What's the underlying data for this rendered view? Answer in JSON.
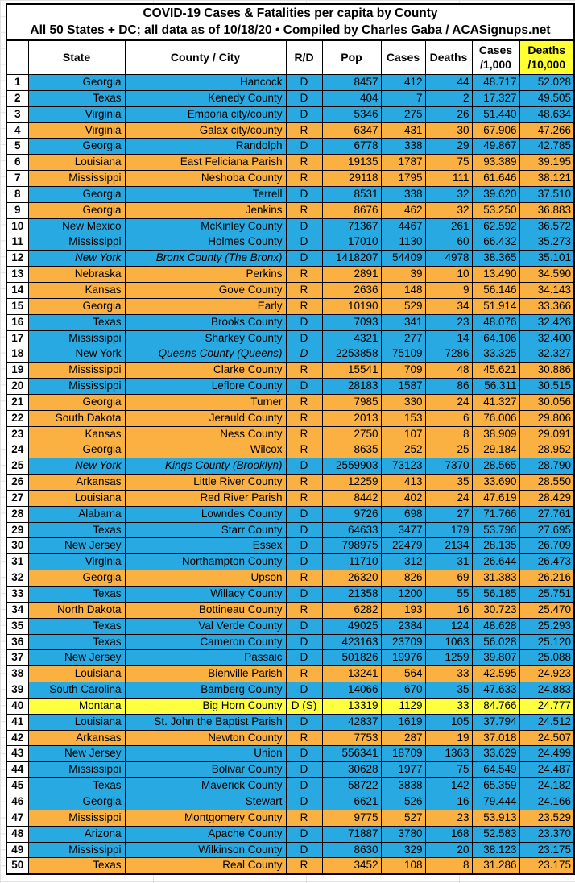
{
  "title": {
    "line1": "COVID-19 Cases & Fatalities per capita by County",
    "line2": "All 50 States + DC; all data as of 10/18/20  • Compiled by Charles Gaba / ACASignups.net"
  },
  "colors": {
    "democrat_row": "#29A9E1",
    "republican_row": "#FBB042",
    "special_row": "#FFFF42",
    "header_highlight": "#FFFF33",
    "border": "#000000"
  },
  "table": {
    "headers": {
      "index": "",
      "state": "State",
      "county": "County / City",
      "rd": "R/D",
      "pop": "Pop",
      "cases": "Cases",
      "deaths": "Deaths",
      "cases_per_1000": "Cases\n/1,000",
      "deaths_per_10000": "Deaths\n/10,000"
    },
    "rows": [
      {
        "n": "1",
        "state": "Georgia",
        "county": "Hancock",
        "rd": "D",
        "pop": "8457",
        "cases": "412",
        "deaths": "44",
        "c1k": "48.717",
        "d10k": "52.028",
        "party": "D"
      },
      {
        "n": "2",
        "state": "Texas",
        "county": "Kenedy County",
        "rd": "D",
        "pop": "404",
        "cases": "7",
        "deaths": "2",
        "c1k": "17.327",
        "d10k": "49.505",
        "party": "D"
      },
      {
        "n": "3",
        "state": "Virginia",
        "county": "Emporia city/county",
        "rd": "D",
        "pop": "5346",
        "cases": "275",
        "deaths": "26",
        "c1k": "51.440",
        "d10k": "48.634",
        "party": "D"
      },
      {
        "n": "4",
        "state": "Virginia",
        "county": "Galax city/county",
        "rd": "R",
        "pop": "6347",
        "cases": "431",
        "deaths": "30",
        "c1k": "67.906",
        "d10k": "47.266",
        "party": "R"
      },
      {
        "n": "5",
        "state": "Georgia",
        "county": "Randolph",
        "rd": "D",
        "pop": "6778",
        "cases": "338",
        "deaths": "29",
        "c1k": "49.867",
        "d10k": "42.785",
        "party": "D"
      },
      {
        "n": "6",
        "state": "Louisiana",
        "county": "East Feliciana Parish",
        "rd": "R",
        "pop": "19135",
        "cases": "1787",
        "deaths": "75",
        "c1k": "93.389",
        "d10k": "39.195",
        "party": "R"
      },
      {
        "n": "7",
        "state": "Mississippi",
        "county": "Neshoba County",
        "rd": "R",
        "pop": "29118",
        "cases": "1795",
        "deaths": "111",
        "c1k": "61.646",
        "d10k": "38.121",
        "party": "R"
      },
      {
        "n": "8",
        "state": "Georgia",
        "county": "Terrell",
        "rd": "D",
        "pop": "8531",
        "cases": "338",
        "deaths": "32",
        "c1k": "39.620",
        "d10k": "37.510",
        "party": "D"
      },
      {
        "n": "9",
        "state": "Georgia",
        "county": "Jenkins",
        "rd": "R",
        "pop": "8676",
        "cases": "462",
        "deaths": "32",
        "c1k": "53.250",
        "d10k": "36.883",
        "party": "R"
      },
      {
        "n": "10",
        "state": "New Mexico",
        "county": "McKinley County",
        "rd": "D",
        "pop": "71367",
        "cases": "4467",
        "deaths": "261",
        "c1k": "62.592",
        "d10k": "36.572",
        "party": "D"
      },
      {
        "n": "11",
        "state": "Mississippi",
        "county": "Holmes County",
        "rd": "D",
        "pop": "17010",
        "cases": "1130",
        "deaths": "60",
        "c1k": "66.432",
        "d10k": "35.273",
        "party": "D"
      },
      {
        "n": "12",
        "state": "New York",
        "county": "Bronx County (The Bronx)",
        "rd": "D",
        "pop": "1418207",
        "cases": "54409",
        "deaths": "4978",
        "c1k": "38.365",
        "d10k": "35.101",
        "party": "D",
        "it": [
          "state",
          "county"
        ]
      },
      {
        "n": "13",
        "state": "Nebraska",
        "county": "Perkins",
        "rd": "R",
        "pop": "2891",
        "cases": "39",
        "deaths": "10",
        "c1k": "13.490",
        "d10k": "34.590",
        "party": "R"
      },
      {
        "n": "14",
        "state": "Kansas",
        "county": "Gove County",
        "rd": "R",
        "pop": "2636",
        "cases": "148",
        "deaths": "9",
        "c1k": "56.146",
        "d10k": "34.143",
        "party": "R"
      },
      {
        "n": "15",
        "state": "Georgia",
        "county": "Early",
        "rd": "R",
        "pop": "10190",
        "cases": "529",
        "deaths": "34",
        "c1k": "51.914",
        "d10k": "33.366",
        "party": "R"
      },
      {
        "n": "16",
        "state": "Texas",
        "county": "Brooks County",
        "rd": "D",
        "pop": "7093",
        "cases": "341",
        "deaths": "23",
        "c1k": "48.076",
        "d10k": "32.426",
        "party": "D"
      },
      {
        "n": "17",
        "state": "Mississippi",
        "county": "Sharkey County",
        "rd": "D",
        "pop": "4321",
        "cases": "277",
        "deaths": "14",
        "c1k": "64.106",
        "d10k": "32.400",
        "party": "D"
      },
      {
        "n": "18",
        "state": "New York",
        "county": "Queens County (Queens)",
        "rd": "D",
        "pop": "2253858",
        "cases": "75109",
        "deaths": "7286",
        "c1k": "33.325",
        "d10k": "32.327",
        "party": "D",
        "it": [
          "county",
          "rd"
        ]
      },
      {
        "n": "19",
        "state": "Mississippi",
        "county": "Clarke County",
        "rd": "R",
        "pop": "15541",
        "cases": "709",
        "deaths": "48",
        "c1k": "45.621",
        "d10k": "30.886",
        "party": "R"
      },
      {
        "n": "20",
        "state": "Mississippi",
        "county": "Leflore County",
        "rd": "D",
        "pop": "28183",
        "cases": "1587",
        "deaths": "86",
        "c1k": "56.311",
        "d10k": "30.515",
        "party": "D"
      },
      {
        "n": "21",
        "state": "Georgia",
        "county": "Turner",
        "rd": "R",
        "pop": "7985",
        "cases": "330",
        "deaths": "24",
        "c1k": "41.327",
        "d10k": "30.056",
        "party": "R"
      },
      {
        "n": "22",
        "state": "South Dakota",
        "county": "Jerauld County",
        "rd": "R",
        "pop": "2013",
        "cases": "153",
        "deaths": "6",
        "c1k": "76.006",
        "d10k": "29.806",
        "party": "R"
      },
      {
        "n": "23",
        "state": "Kansas",
        "county": "Ness County",
        "rd": "R",
        "pop": "2750",
        "cases": "107",
        "deaths": "8",
        "c1k": "38.909",
        "d10k": "29.091",
        "party": "R"
      },
      {
        "n": "24",
        "state": "Georgia",
        "county": "Wilcox",
        "rd": "R",
        "pop": "8635",
        "cases": "252",
        "deaths": "25",
        "c1k": "29.184",
        "d10k": "28.952",
        "party": "R"
      },
      {
        "n": "25",
        "state": "New York",
        "county": "Kings County (Brooklyn)",
        "rd": "D",
        "pop": "2559903",
        "cases": "73123",
        "deaths": "7370",
        "c1k": "28.565",
        "d10k": "28.790",
        "party": "D",
        "it": [
          "state",
          "county"
        ]
      },
      {
        "n": "26",
        "state": "Arkansas",
        "county": "Little River County",
        "rd": "R",
        "pop": "12259",
        "cases": "413",
        "deaths": "35",
        "c1k": "33.690",
        "d10k": "28.550",
        "party": "R"
      },
      {
        "n": "27",
        "state": "Louisiana",
        "county": "Red River Parish",
        "rd": "R",
        "pop": "8442",
        "cases": "402",
        "deaths": "24",
        "c1k": "47.619",
        "d10k": "28.429",
        "party": "R"
      },
      {
        "n": "28",
        "state": "Alabama",
        "county": "Lowndes County",
        "rd": "D",
        "pop": "9726",
        "cases": "698",
        "deaths": "27",
        "c1k": "71.766",
        "d10k": "27.761",
        "party": "D"
      },
      {
        "n": "29",
        "state": "Texas",
        "county": "Starr County",
        "rd": "D",
        "pop": "64633",
        "cases": "3477",
        "deaths": "179",
        "c1k": "53.796",
        "d10k": "27.695",
        "party": "D"
      },
      {
        "n": "30",
        "state": "New Jersey",
        "county": "Essex",
        "rd": "D",
        "pop": "798975",
        "cases": "22479",
        "deaths": "2134",
        "c1k": "28.135",
        "d10k": "26.709",
        "party": "D"
      },
      {
        "n": "31",
        "state": "Virginia",
        "county": "Northampton County",
        "rd": "D",
        "pop": "11710",
        "cases": "312",
        "deaths": "31",
        "c1k": "26.644",
        "d10k": "26.473",
        "party": "D"
      },
      {
        "n": "32",
        "state": "Georgia",
        "county": "Upson",
        "rd": "R",
        "pop": "26320",
        "cases": "826",
        "deaths": "69",
        "c1k": "31.383",
        "d10k": "26.216",
        "party": "R"
      },
      {
        "n": "33",
        "state": "Texas",
        "county": "Willacy County",
        "rd": "D",
        "pop": "21358",
        "cases": "1200",
        "deaths": "55",
        "c1k": "56.185",
        "d10k": "25.751",
        "party": "D"
      },
      {
        "n": "34",
        "state": "North Dakota",
        "county": "Bottineau County",
        "rd": "R",
        "pop": "6282",
        "cases": "193",
        "deaths": "16",
        "c1k": "30.723",
        "d10k": "25.470",
        "party": "R"
      },
      {
        "n": "35",
        "state": "Texas",
        "county": "Val Verde County",
        "rd": "D",
        "pop": "49025",
        "cases": "2384",
        "deaths": "124",
        "c1k": "48.628",
        "d10k": "25.293",
        "party": "D"
      },
      {
        "n": "36",
        "state": "Texas",
        "county": "Cameron County",
        "rd": "D",
        "pop": "423163",
        "cases": "23709",
        "deaths": "1063",
        "c1k": "56.028",
        "d10k": "25.120",
        "party": "D"
      },
      {
        "n": "37",
        "state": "New Jersey",
        "county": "Passaic",
        "rd": "D",
        "pop": "501826",
        "cases": "19976",
        "deaths": "1259",
        "c1k": "39.807",
        "d10k": "25.088",
        "party": "D"
      },
      {
        "n": "38",
        "state": "Louisiana",
        "county": "Bienville Parish",
        "rd": "R",
        "pop": "13241",
        "cases": "564",
        "deaths": "33",
        "c1k": "42.595",
        "d10k": "24.923",
        "party": "R"
      },
      {
        "n": "39",
        "state": "South Carolina",
        "county": "Bamberg County",
        "rd": "D",
        "pop": "14066",
        "cases": "670",
        "deaths": "35",
        "c1k": "47.633",
        "d10k": "24.883",
        "party": "D"
      },
      {
        "n": "40",
        "state": "Montana",
        "county": "Big Horn County",
        "rd": "D (S)",
        "pop": "13319",
        "cases": "1129",
        "deaths": "33",
        "c1k": "84.766",
        "d10k": "24.777",
        "party": "S"
      },
      {
        "n": "41",
        "state": "Louisiana",
        "county": "St. John the Baptist Parish",
        "rd": "D",
        "pop": "42837",
        "cases": "1619",
        "deaths": "105",
        "c1k": "37.794",
        "d10k": "24.512",
        "party": "D"
      },
      {
        "n": "42",
        "state": "Arkansas",
        "county": "Newton County",
        "rd": "R",
        "pop": "7753",
        "cases": "287",
        "deaths": "19",
        "c1k": "37.018",
        "d10k": "24.507",
        "party": "R"
      },
      {
        "n": "43",
        "state": "New Jersey",
        "county": "Union",
        "rd": "D",
        "pop": "556341",
        "cases": "18709",
        "deaths": "1363",
        "c1k": "33.629",
        "d10k": "24.499",
        "party": "D"
      },
      {
        "n": "44",
        "state": "Mississippi",
        "county": "Bolivar County",
        "rd": "D",
        "pop": "30628",
        "cases": "1977",
        "deaths": "75",
        "c1k": "64.549",
        "d10k": "24.487",
        "party": "D"
      },
      {
        "n": "45",
        "state": "Texas",
        "county": "Maverick County",
        "rd": "D",
        "pop": "58722",
        "cases": "3838",
        "deaths": "142",
        "c1k": "65.359",
        "d10k": "24.182",
        "party": "D"
      },
      {
        "n": "46",
        "state": "Georgia",
        "county": "Stewart",
        "rd": "D",
        "pop": "6621",
        "cases": "526",
        "deaths": "16",
        "c1k": "79.444",
        "d10k": "24.166",
        "party": "D"
      },
      {
        "n": "47",
        "state": "Mississippi",
        "county": "Montgomery County",
        "rd": "R",
        "pop": "9775",
        "cases": "527",
        "deaths": "23",
        "c1k": "53.913",
        "d10k": "23.529",
        "party": "R"
      },
      {
        "n": "48",
        "state": "Arizona",
        "county": "Apache County",
        "rd": "D",
        "pop": "71887",
        "cases": "3780",
        "deaths": "168",
        "c1k": "52.583",
        "d10k": "23.370",
        "party": "D"
      },
      {
        "n": "49",
        "state": "Mississippi",
        "county": "Wilkinson County",
        "rd": "D",
        "pop": "8630",
        "cases": "329",
        "deaths": "20",
        "c1k": "38.123",
        "d10k": "23.175",
        "party": "D"
      },
      {
        "n": "50",
        "state": "Texas",
        "county": "Real County",
        "rd": "R",
        "pop": "3452",
        "cases": "108",
        "deaths": "8",
        "c1k": "31.286",
        "d10k": "23.175",
        "party": "R"
      }
    ]
  }
}
